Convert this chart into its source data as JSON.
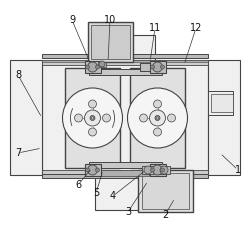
{
  "bg_color": "#ffffff",
  "line_color": "#444444",
  "figsize": [
    2.5,
    2.29
  ],
  "dpi": 100
}
